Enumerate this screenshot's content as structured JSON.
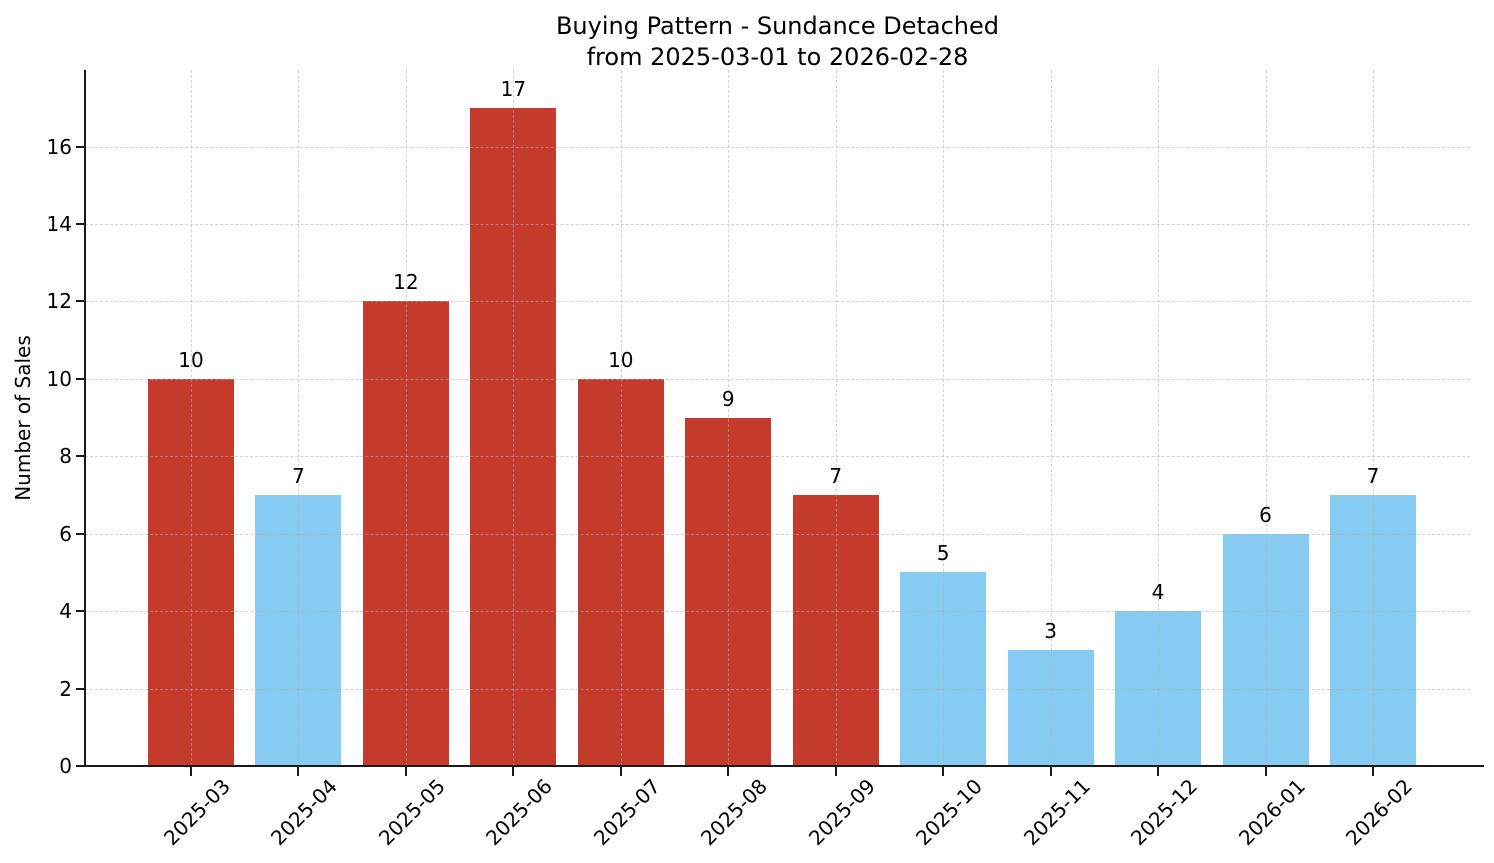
{
  "chart_data": {
    "type": "bar",
    "title": "Buying Pattern - Sundance Detached",
    "subtitle": "from 2025-03-01 to 2026-02-28",
    "xlabel": "",
    "ylabel": "Number of Sales",
    "categories": [
      "2025-03",
      "2025-04",
      "2025-05",
      "2025-06",
      "2025-07",
      "2025-08",
      "2025-09",
      "2025-10",
      "2025-11",
      "2025-12",
      "2026-01",
      "2026-02"
    ],
    "values": [
      10,
      7,
      12,
      17,
      10,
      9,
      7,
      5,
      3,
      4,
      6,
      7
    ],
    "bar_value_labels": [
      "10",
      "7",
      "12",
      "17",
      "10",
      "9",
      "7",
      "5",
      "3",
      "4",
      "6",
      "7"
    ],
    "bar_colors": [
      "#c43b2c",
      "#85cbf2",
      "#c43b2c",
      "#c43b2c",
      "#c43b2c",
      "#c43b2c",
      "#c43b2c",
      "#85cbf2",
      "#85cbf2",
      "#85cbf2",
      "#85cbf2",
      "#85cbf2"
    ],
    "colors": {
      "high_season_red": "#c43b2c",
      "low_season_blue": "#85cbf2",
      "axis": "#1a1a1a",
      "gridline": "#c9c9c9"
    },
    "yticks": [
      0,
      2,
      4,
      6,
      8,
      10,
      12,
      14,
      16
    ],
    "ylim": [
      0,
      17.98
    ],
    "grid": "dashed-both-axes",
    "legend": "none"
  }
}
